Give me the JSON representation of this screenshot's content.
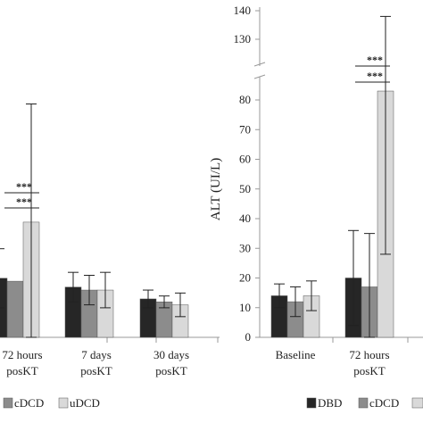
{
  "chart_data": [
    {
      "type": "bar",
      "categories": [
        "72 hours posKT",
        "7 days posKT",
        "30 days posKT"
      ],
      "series": [
        {
          "values": [
            20,
            17,
            13
          ],
          "errors": [
            10,
            5,
            3
          ]
        },
        {
          "values": [
            19,
            16,
            12
          ],
          "errors": [
            null,
            5,
            2
          ]
        },
        {
          "values": [
            39,
            16,
            11
          ],
          "errors": [
            40,
            6,
            4
          ]
        }
      ],
      "significance": [
        {
          "category": "72 hours posKT",
          "label": "***"
        },
        {
          "category": "72 hours posKT",
          "label": "***"
        }
      ]
    },
    {
      "type": "bar",
      "ylabel": "ALT (UI/L)",
      "categories": [
        "Baseline",
        "72 hours posKT"
      ],
      "yticks_lower": [
        0,
        10,
        20,
        30,
        40,
        50,
        60,
        70,
        80
      ],
      "yticks_upper": [
        130,
        140
      ],
      "axis_break": [
        85,
        125
      ],
      "series": [
        {
          "name": "DBD",
          "values": [
            14,
            20
          ],
          "errors": [
            4,
            16
          ]
        },
        {
          "name": "cDCD",
          "values": [
            12,
            17
          ],
          "errors": [
            5,
            18
          ]
        },
        {
          "name": "uDCD",
          "values": [
            14,
            83
          ],
          "errors": [
            5,
            55
          ]
        }
      ],
      "significance": [
        {
          "category": "72 hours posKT",
          "label": "***"
        },
        {
          "category": "72 hours posKT",
          "label": "***"
        }
      ]
    }
  ],
  "legend_left": [
    "cDCD",
    "uDCD"
  ],
  "legend_right": [
    "DBD",
    "cDCD"
  ],
  "colors": {
    "DBD": "#262626",
    "cDCD": "#8c8c8c",
    "uDCD": "#d9d9d9"
  }
}
